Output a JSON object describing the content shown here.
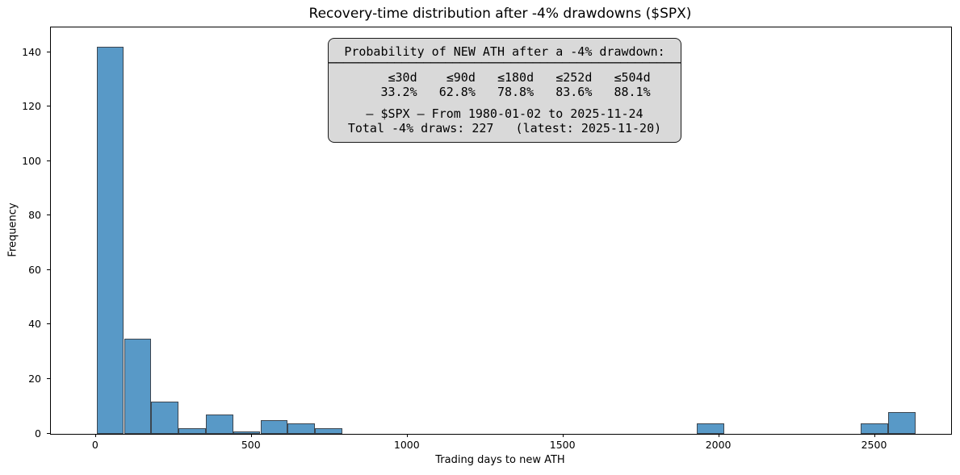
{
  "annotation": {
    "heading": "Probability of NEW ATH after a -4% drawdown:",
    "separator": "─────────────────────────────────────────────────",
    "columns_row": "    ≤30d    ≤90d   ≤180d   ≤252d   ≤504d",
    "values_row": "   33.2%   62.8%   78.8%   83.6%   88.1%",
    "thresholds": [
      {
        "label": "≤30d",
        "probability": "33.2%"
      },
      {
        "label": "≤90d",
        "probability": "62.8%"
      },
      {
        "label": "≤180d",
        "probability": "78.8%"
      },
      {
        "label": "≤252d",
        "probability": "83.6%"
      },
      {
        "label": "≤504d",
        "probability": "88.1%"
      }
    ],
    "series_line": "— $SPX — From 1980-01-02 to 2025-11-24",
    "total_line": "Total -4% draws: 227   (latest: 2025-11-20)"
  },
  "chart_data": {
    "type": "bar",
    "subtype": "histogram",
    "title": "Recovery-time distribution after -4% drawdowns ($SPX)",
    "xlabel": "Trading days to new ATH",
    "ylabel": "Frequency",
    "x_ticks": [
      0,
      500,
      1000,
      1500,
      2000,
      2500
    ],
    "y_ticks": [
      0,
      20,
      40,
      60,
      80,
      100,
      120,
      140
    ],
    "xlim": [
      -145,
      2745
    ],
    "ylim": [
      0,
      149.2
    ],
    "bin_width": 87.6,
    "bars": [
      {
        "bin_start": 2,
        "count": 142
      },
      {
        "bin_start": 89.6,
        "count": 35
      },
      {
        "bin_start": 177.2,
        "count": 12
      },
      {
        "bin_start": 264.8,
        "count": 2
      },
      {
        "bin_start": 352.4,
        "count": 7
      },
      {
        "bin_start": 440.0,
        "count": 1
      },
      {
        "bin_start": 527.6,
        "count": 5
      },
      {
        "bin_start": 615.2,
        "count": 4
      },
      {
        "bin_start": 702.8,
        "count": 2
      },
      {
        "bin_start": 1929.2,
        "count": 4
      },
      {
        "bin_start": 2454.8,
        "count": 4
      },
      {
        "bin_start": 2542.4,
        "count": 8
      }
    ],
    "legend": "none",
    "grid": false,
    "colors": {
      "bar_fill": "#5899c7",
      "bar_edge": "#3c4650",
      "annotation_bg": "#d9d9d9",
      "annotation_border": "#1a1a1a",
      "axis": "#000000"
    }
  }
}
